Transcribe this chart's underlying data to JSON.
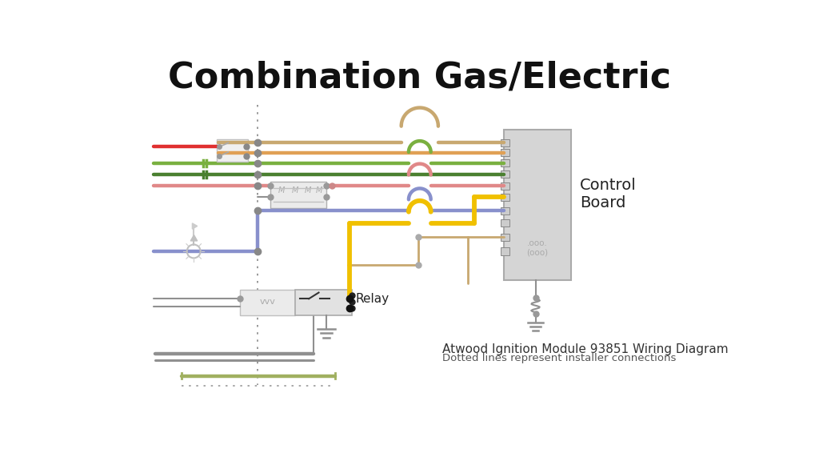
{
  "title": "Combination Gas/Electric",
  "subtitle1": "Atwood Ignition Module 93851 Wiring Diagram",
  "subtitle2": "Dotted lines represent installer connections",
  "control_board_label": "Control\nBoard",
  "relay_label": "Relay",
  "bg_color": "#ffffff",
  "colors": {
    "tan": "#c8a870",
    "orange": "#e0a055",
    "green": "#7ab040",
    "dark_green": "#4a8030",
    "pink": "#e08888",
    "blue": "#8890cc",
    "yellow": "#f0c000",
    "gray": "#909090",
    "light_gray": "#c0c0c0",
    "red": "#e03030",
    "olive": "#a0b060"
  },
  "DV": 248,
  "CB_L": 648,
  "CB_R": 758,
  "CB_T": 120,
  "CB_B": 365
}
